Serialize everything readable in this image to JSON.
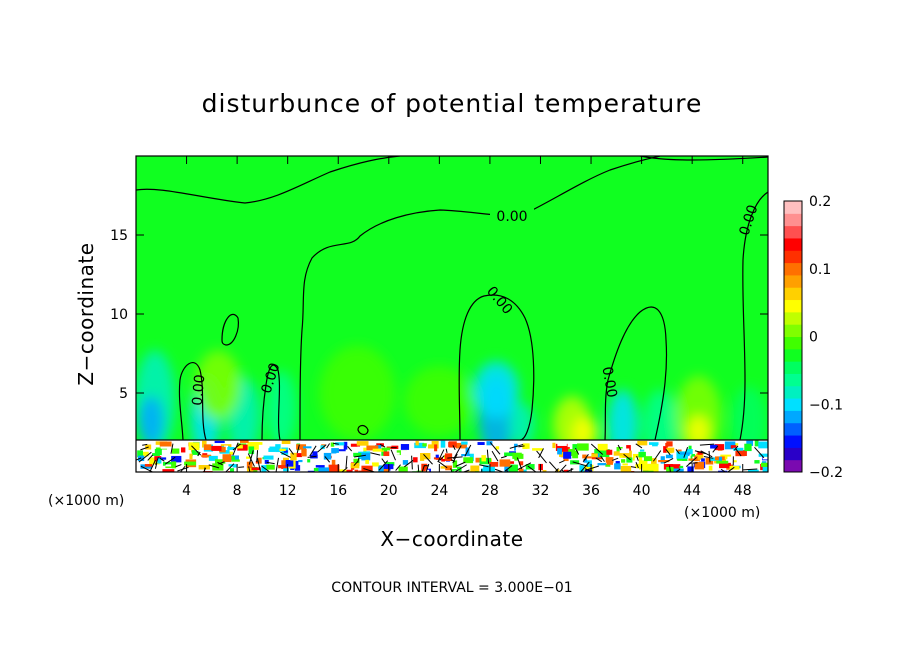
{
  "chart_data": {
    "type": "heatmap",
    "title": "disturbunce of potential temperature",
    "xlabel": "X−coordinate",
    "ylabel": "Z−coordinate",
    "x_unit_left": "(×1000 m)",
    "x_unit_right": "(×1000 m)",
    "xlim": [
      0,
      50
    ],
    "ylim": [
      0,
      20
    ],
    "xticks": [
      4,
      8,
      12,
      16,
      20,
      24,
      28,
      32,
      36,
      40,
      44,
      48
    ],
    "xtick_labels": [
      "4",
      "8",
      "12",
      "16",
      "20",
      "24",
      "28",
      "32",
      "36",
      "40",
      "44",
      "48"
    ],
    "yticks": [
      5,
      10,
      15
    ],
    "ytick_labels": [
      "5",
      "10",
      "15"
    ],
    "colorbar": {
      "range": [
        -0.2,
        0.2
      ],
      "ticks": [
        0.2,
        0.1,
        0,
        -0.1,
        -0.2
      ],
      "tick_labels": [
        "0.2",
        "0.1",
        "0",
        "−0.1",
        "−0.2"
      ],
      "colors": [
        "#7a0ab0",
        "#2a00c8",
        "#0010ff",
        "#0060ff",
        "#00a8ff",
        "#00e0ff",
        "#00f0c0",
        "#00ff90",
        "#00ff60",
        "#10ff20",
        "#40ff00",
        "#80ff00",
        "#c0ff00",
        "#ffff00",
        "#ffd000",
        "#ffa000",
        "#ff7000",
        "#ff3000",
        "#ff0000",
        "#ff5050",
        "#ff9090",
        "#ffc0c0"
      ]
    },
    "contour_labels": [
      "0.00",
      "0.00",
      "0.00",
      "0.00",
      "0.00",
      "0.00"
    ],
    "note": "CONTOUR INTERVAL = 3.000E−01"
  }
}
